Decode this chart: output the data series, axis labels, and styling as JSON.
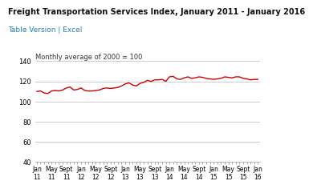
{
  "title": "Freight Transportation Services Index, January 2011 - January 2016",
  "subtitle": "Table Version | Excel",
  "ylabel": "Monthly average of 2000 = 100",
  "line_color": "#cc0000",
  "bg_color": "#ffffff",
  "grid_color": "#bbbbbb",
  "ylim": [
    40,
    140
  ],
  "yticks": [
    40,
    60,
    80,
    100,
    120,
    140
  ],
  "x_tick_labels": [
    "Jan\n11",
    "May\n11",
    "Sept\n11",
    "Jan\n12",
    "May\n12",
    "Sept\n12",
    "Jan\n13",
    "May\n13",
    "Sept\n13",
    "Jan\n14",
    "May\n14",
    "Sept\n14",
    "Jan\n15",
    "May\n15",
    "Sept\n15",
    "Jan\n16"
  ],
  "x_tick_positions": [
    0,
    4,
    8,
    12,
    16,
    20,
    24,
    28,
    32,
    36,
    40,
    44,
    48,
    52,
    56,
    60
  ],
  "values": [
    110.0,
    110.5,
    108.5,
    108.0,
    110.5,
    111.0,
    110.5,
    111.5,
    113.5,
    114.5,
    111.5,
    112.0,
    113.5,
    111.0,
    110.5,
    110.5,
    111.0,
    111.5,
    113.0,
    113.5,
    113.0,
    113.5,
    114.0,
    115.5,
    117.5,
    118.5,
    116.5,
    115.5,
    118.0,
    119.0,
    121.0,
    120.0,
    121.5,
    121.5,
    122.0,
    120.0,
    124.5,
    125.0,
    122.5,
    122.0,
    123.5,
    124.5,
    123.0,
    123.5,
    124.5,
    124.0,
    123.0,
    122.5,
    122.0,
    122.5,
    123.0,
    124.5,
    124.0,
    123.5,
    124.5,
    124.5,
    123.0,
    122.5,
    121.5,
    122.0,
    122.0
  ],
  "title_fontsize": 7.0,
  "subtitle_fontsize": 6.5,
  "axis_label_fontsize": 6.0,
  "tick_fontsize": 6.0,
  "xtick_fontsize": 5.5
}
